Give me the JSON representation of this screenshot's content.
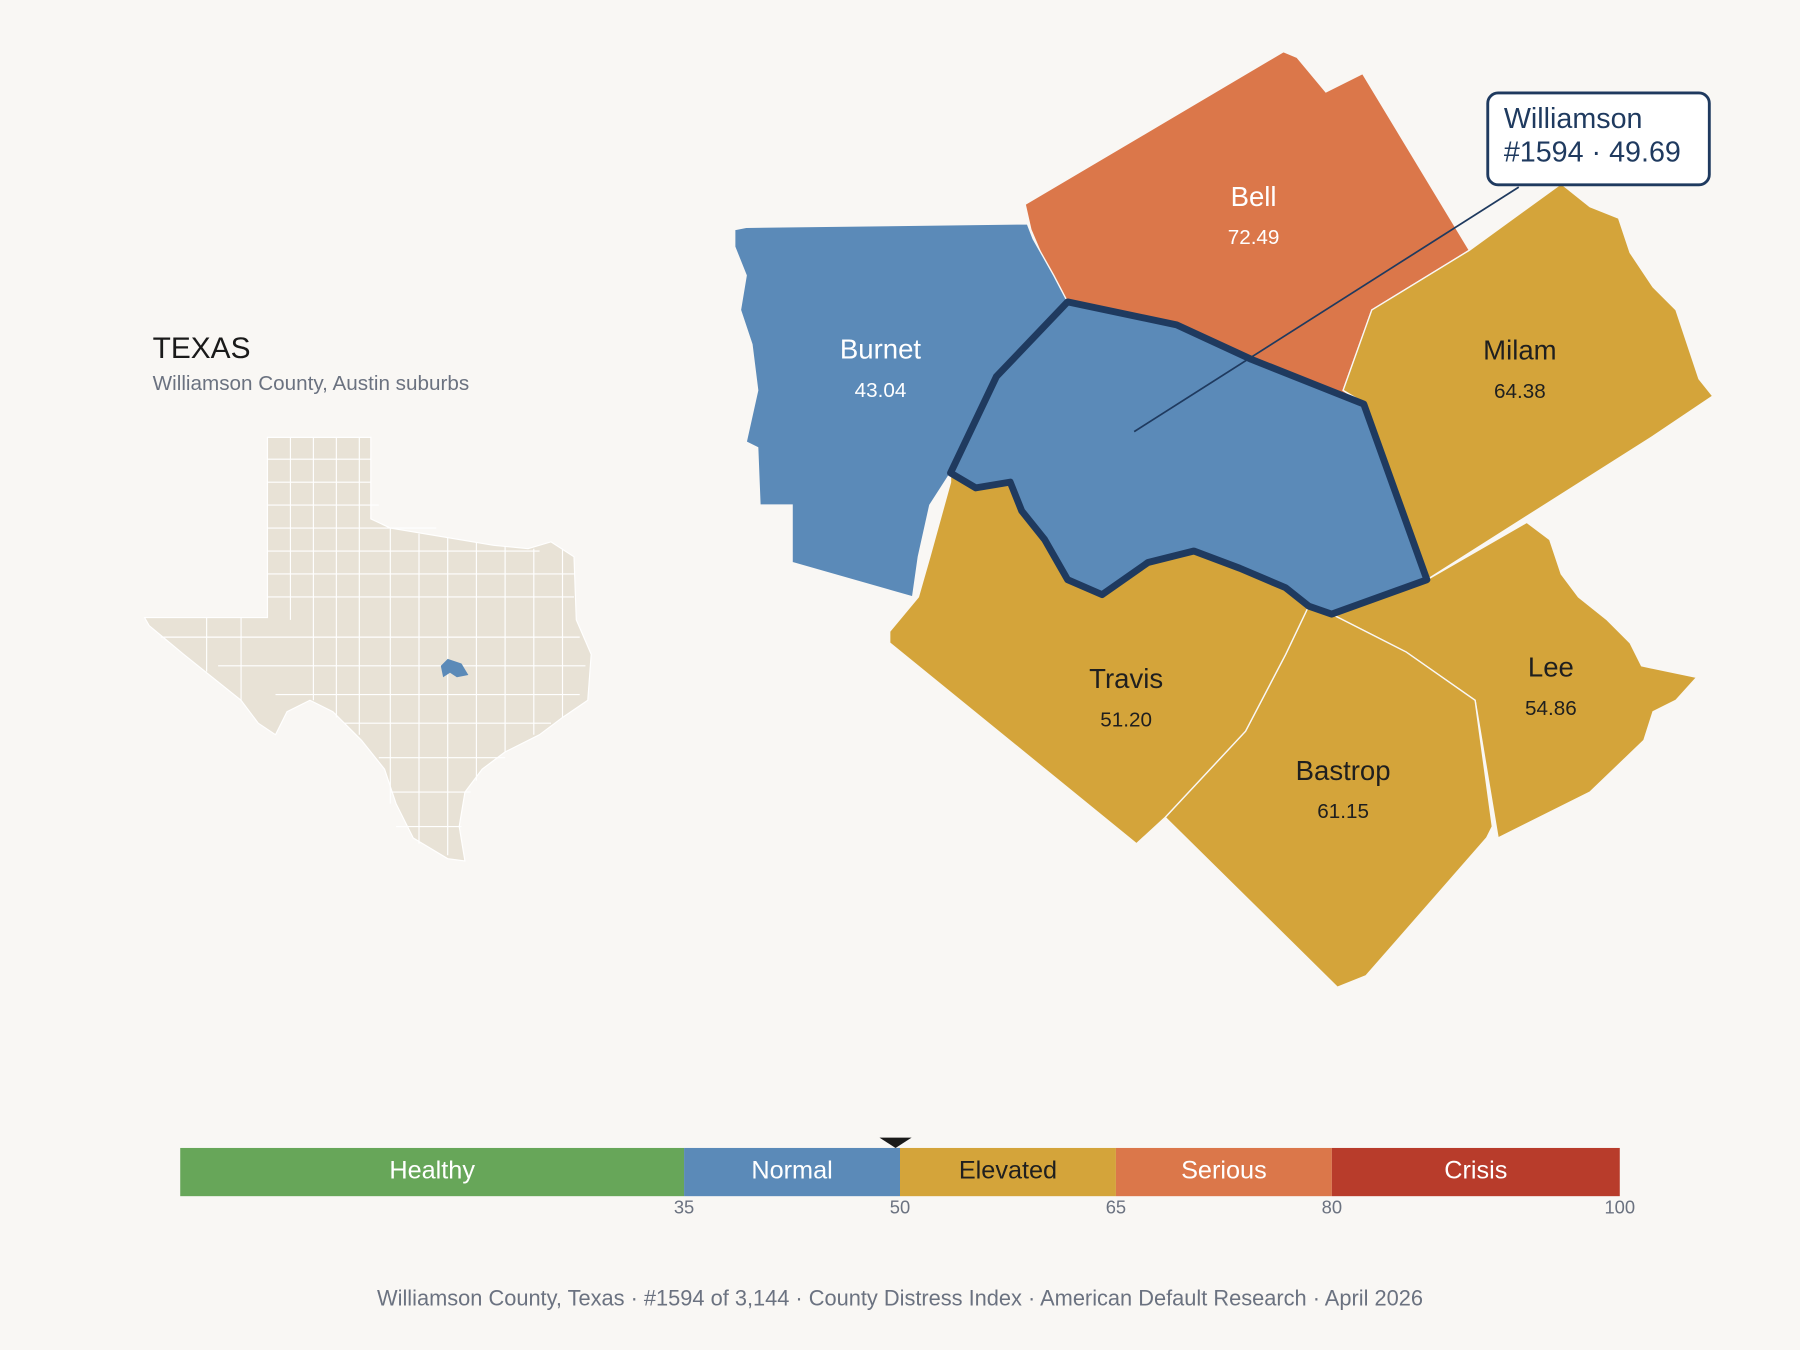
{
  "header": {
    "title": "TEXAS",
    "subtitle": "Williamson County, Austin suburbs"
  },
  "highlight": {
    "name": "Williamson",
    "value": 49.69,
    "label": "#1594 · 49.69"
  },
  "counties": [
    {
      "name": "Bell",
      "value": 72.49,
      "label": "72.49"
    },
    {
      "name": "Burnet",
      "value": 43.04,
      "label": "43.04"
    },
    {
      "name": "Milam",
      "value": 64.38,
      "label": "64.38"
    },
    {
      "name": "Lee",
      "value": 54.86,
      "label": "54.86"
    },
    {
      "name": "Bastrop",
      "value": 61.15,
      "label": "61.15"
    },
    {
      "name": "Travis",
      "value": 51.2,
      "label": "51.20"
    }
  ],
  "scale": {
    "lim": [
      0,
      100
    ],
    "ticks": [
      35,
      50,
      65,
      80,
      100
    ],
    "bands": [
      {
        "name": "Healthy",
        "color": "#67a659",
        "text_color": "#ffffff"
      },
      {
        "name": "Normal",
        "color": "#5b8ab8",
        "text_color": "#ffffff"
      },
      {
        "name": "Elevated",
        "color": "#d4a43a",
        "text_color": "#1f1f1f"
      },
      {
        "name": "Serious",
        "color": "#db774a",
        "text_color": "#ffffff"
      },
      {
        "name": "Crisis",
        "color": "#b83c2b",
        "text_color": "#ffffff"
      }
    ]
  },
  "footer": "Williamson County, Texas  ·  #1594 of 3,144  ·  County Distress Index  ·  American Default Research  ·  April 2026"
}
